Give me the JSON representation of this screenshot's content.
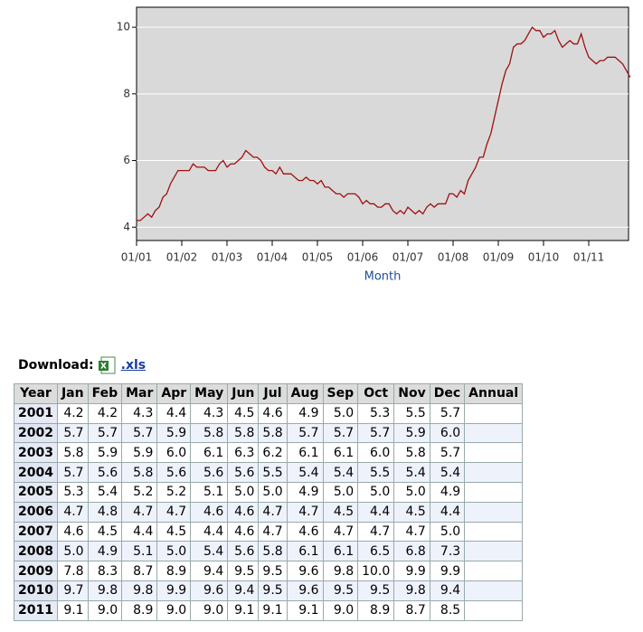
{
  "chart_data": {
    "type": "line",
    "x_label": "Month",
    "categories": [
      "01/01",
      null,
      null,
      null,
      null,
      null,
      null,
      null,
      null,
      null,
      null,
      null,
      "01/02",
      null,
      null,
      null,
      null,
      null,
      null,
      null,
      null,
      null,
      null,
      null,
      "01/03",
      null,
      null,
      null,
      null,
      null,
      null,
      null,
      null,
      null,
      null,
      null,
      "01/04",
      null,
      null,
      null,
      null,
      null,
      null,
      null,
      null,
      null,
      null,
      null,
      "01/05",
      null,
      null,
      null,
      null,
      null,
      null,
      null,
      null,
      null,
      null,
      null,
      "01/06",
      null,
      null,
      null,
      null,
      null,
      null,
      null,
      null,
      null,
      null,
      null,
      "01/07",
      null,
      null,
      null,
      null,
      null,
      null,
      null,
      null,
      null,
      null,
      null,
      "01/08",
      null,
      null,
      null,
      null,
      null,
      null,
      null,
      null,
      null,
      null,
      null,
      "01/09",
      null,
      null,
      null,
      null,
      null,
      null,
      null,
      null,
      null,
      null,
      null,
      "01/10",
      null,
      null,
      null,
      null,
      null,
      null,
      null,
      null,
      null,
      null,
      null,
      "01/11",
      null,
      null,
      null,
      null,
      null,
      null,
      null,
      null,
      null,
      null,
      null
    ],
    "values": [
      4.2,
      4.2,
      4.3,
      4.4,
      4.3,
      4.5,
      4.6,
      4.9,
      5.0,
      5.3,
      5.5,
      5.7,
      5.7,
      5.7,
      5.7,
      5.9,
      5.8,
      5.8,
      5.8,
      5.7,
      5.7,
      5.7,
      5.9,
      6.0,
      5.8,
      5.9,
      5.9,
      6.0,
      6.1,
      6.3,
      6.2,
      6.1,
      6.1,
      6.0,
      5.8,
      5.7,
      5.7,
      5.6,
      5.8,
      5.6,
      5.6,
      5.6,
      5.5,
      5.4,
      5.4,
      5.5,
      5.4,
      5.4,
      5.3,
      5.4,
      5.2,
      5.2,
      5.1,
      5.0,
      5.0,
      4.9,
      5.0,
      5.0,
      5.0,
      4.9,
      4.7,
      4.8,
      4.7,
      4.7,
      4.6,
      4.6,
      4.7,
      4.7,
      4.5,
      4.4,
      4.5,
      4.4,
      4.6,
      4.5,
      4.4,
      4.5,
      4.4,
      4.6,
      4.7,
      4.6,
      4.7,
      4.7,
      4.7,
      5.0,
      5.0,
      4.9,
      5.1,
      5.0,
      5.4,
      5.6,
      5.8,
      6.1,
      6.1,
      6.5,
      6.8,
      7.3,
      7.8,
      8.3,
      8.7,
      8.9,
      9.4,
      9.5,
      9.5,
      9.6,
      9.8,
      10.0,
      9.9,
      9.9,
      9.7,
      9.8,
      9.8,
      9.9,
      9.6,
      9.4,
      9.5,
      9.6,
      9.5,
      9.5,
      9.8,
      9.4,
      9.1,
      9.0,
      8.9,
      9.0,
      9.0,
      9.1,
      9.1,
      9.1,
      9.0,
      8.9,
      8.7,
      8.5
    ],
    "color": "#a01010",
    "ylim": [
      3.6,
      10.6
    ],
    "yticks": [
      4,
      6,
      8,
      10
    ],
    "grid": true
  },
  "download": {
    "label": "Download:",
    "link": ".xls"
  },
  "table": {
    "header": [
      "Year",
      "Jan",
      "Feb",
      "Mar",
      "Apr",
      "May",
      "Jun",
      "Jul",
      "Aug",
      "Sep",
      "Oct",
      "Nov",
      "Dec",
      "Annual"
    ],
    "rows": [
      [
        "2001",
        "4.2",
        "4.2",
        "4.3",
        "4.4",
        "4.3",
        "4.5",
        "4.6",
        "4.9",
        "5.0",
        "5.3",
        "5.5",
        "5.7"
      ],
      [
        "2002",
        "5.7",
        "5.7",
        "5.7",
        "5.9",
        "5.8",
        "5.8",
        "5.8",
        "5.7",
        "5.7",
        "5.7",
        "5.9",
        "6.0"
      ],
      [
        "2003",
        "5.8",
        "5.9",
        "5.9",
        "6.0",
        "6.1",
        "6.3",
        "6.2",
        "6.1",
        "6.1",
        "6.0",
        "5.8",
        "5.7"
      ],
      [
        "2004",
        "5.7",
        "5.6",
        "5.8",
        "5.6",
        "5.6",
        "5.6",
        "5.5",
        "5.4",
        "5.4",
        "5.5",
        "5.4",
        "5.4"
      ],
      [
        "2005",
        "5.3",
        "5.4",
        "5.2",
        "5.2",
        "5.1",
        "5.0",
        "5.0",
        "4.9",
        "5.0",
        "5.0",
        "5.0",
        "4.9"
      ],
      [
        "2006",
        "4.7",
        "4.8",
        "4.7",
        "4.7",
        "4.6",
        "4.6",
        "4.7",
        "4.7",
        "4.5",
        "4.4",
        "4.5",
        "4.4"
      ],
      [
        "2007",
        "4.6",
        "4.5",
        "4.4",
        "4.5",
        "4.4",
        "4.6",
        "4.7",
        "4.6",
        "4.7",
        "4.7",
        "4.7",
        "5.0"
      ],
      [
        "2008",
        "5.0",
        "4.9",
        "5.1",
        "5.0",
        "5.4",
        "5.6",
        "5.8",
        "6.1",
        "6.1",
        "6.5",
        "6.8",
        "7.3"
      ],
      [
        "2009",
        "7.8",
        "8.3",
        "8.7",
        "8.9",
        "9.4",
        "9.5",
        "9.5",
        "9.6",
        "9.8",
        "10.0",
        "9.9",
        "9.9"
      ],
      [
        "2010",
        "9.7",
        "9.8",
        "9.8",
        "9.9",
        "9.6",
        "9.4",
        "9.5",
        "9.6",
        "9.5",
        "9.5",
        "9.8",
        "9.4"
      ],
      [
        "2011",
        "9.1",
        "9.0",
        "8.9",
        "9.0",
        "9.0",
        "9.1",
        "9.1",
        "9.1",
        "9.0",
        "8.9",
        "8.7",
        "8.5"
      ]
    ]
  }
}
